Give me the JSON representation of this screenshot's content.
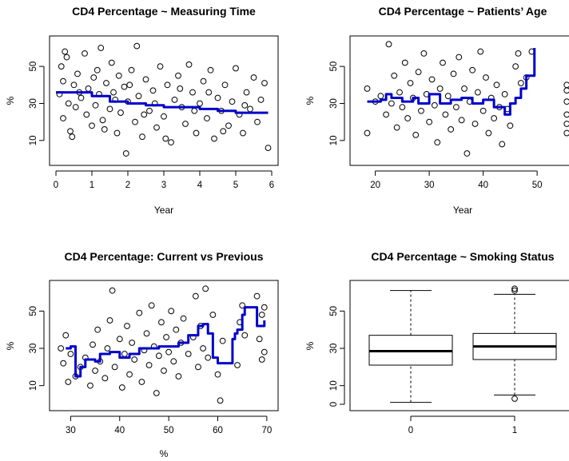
{
  "colors": {
    "smooth_line": "#0000cc",
    "points": "#000000",
    "axes": "#000000",
    "background": "#ffffff"
  },
  "chart_data": [
    {
      "type": "scatter",
      "title": "CD4 Percentage ~ Measuring Time",
      "xlabel": "Year",
      "ylabel": "%",
      "xlim": [
        0,
        6
      ],
      "ylim": [
        0,
        63
      ],
      "x_ticks": [
        "0",
        "1",
        "2",
        "3",
        "4",
        "5",
        "6"
      ],
      "y_ticks": [
        "10",
        "30",
        "50"
      ],
      "points": [
        [
          0.1,
          35
        ],
        [
          0.15,
          50
        ],
        [
          0.2,
          22
        ],
        [
          0.2,
          42
        ],
        [
          0.3,
          55
        ],
        [
          0.35,
          30
        ],
        [
          0.4,
          15
        ],
        [
          0.5,
          40
        ],
        [
          0.55,
          28
        ],
        [
          0.6,
          46
        ],
        [
          0.7,
          33
        ],
        [
          0.8,
          57
        ],
        [
          0.85,
          24
        ],
        [
          0.9,
          38
        ],
        [
          1.0,
          18
        ],
        [
          1.05,
          44
        ],
        [
          1.1,
          29
        ],
        [
          1.2,
          35
        ],
        [
          1.25,
          60
        ],
        [
          1.3,
          21
        ],
        [
          1.4,
          41
        ],
        [
          1.5,
          27
        ],
        [
          1.55,
          52
        ],
        [
          1.6,
          36
        ],
        [
          1.7,
          14
        ],
        [
          1.75,
          45
        ],
        [
          1.8,
          25
        ],
        [
          1.9,
          39
        ],
        [
          1.95,
          3
        ],
        [
          2.0,
          31
        ],
        [
          2.1,
          48
        ],
        [
          2.2,
          20
        ],
        [
          2.25,
          61
        ],
        [
          2.3,
          34
        ],
        [
          2.4,
          12
        ],
        [
          2.5,
          43
        ],
        [
          2.6,
          26
        ],
        [
          2.7,
          37
        ],
        [
          2.8,
          17
        ],
        [
          2.9,
          50
        ],
        [
          3.0,
          23
        ],
        [
          3.1,
          40
        ],
        [
          3.2,
          9
        ],
        [
          3.3,
          32
        ],
        [
          3.4,
          45
        ],
        [
          3.5,
          28
        ],
        [
          3.6,
          19
        ],
        [
          3.7,
          51
        ],
        [
          3.8,
          36
        ],
        [
          3.9,
          14
        ],
        [
          4.0,
          30
        ],
        [
          4.1,
          42
        ],
        [
          4.2,
          22
        ],
        [
          4.3,
          48
        ],
        [
          4.4,
          11
        ],
        [
          4.5,
          33
        ],
        [
          4.6,
          26
        ],
        [
          4.7,
          40
        ],
        [
          4.8,
          18
        ],
        [
          4.9,
          31
        ],
        [
          5.0,
          49
        ],
        [
          5.1,
          24
        ],
        [
          5.2,
          14
        ],
        [
          5.3,
          36
        ],
        [
          5.4,
          27
        ],
        [
          5.5,
          44
        ],
        [
          5.6,
          20
        ],
        [
          5.7,
          32
        ],
        [
          5.8,
          41
        ],
        [
          5.9,
          6
        ],
        [
          0.25,
          58
        ],
        [
          0.45,
          12
        ],
        [
          0.65,
          36
        ],
        [
          1.15,
          48
        ],
        [
          1.35,
          16
        ],
        [
          1.65,
          32
        ],
        [
          2.05,
          40
        ],
        [
          2.45,
          24
        ],
        [
          2.75,
          30
        ],
        [
          3.05,
          11
        ],
        [
          3.45,
          38
        ],
        [
          3.85,
          26
        ],
        [
          4.25,
          36
        ],
        [
          4.65,
          15
        ],
        [
          5.25,
          29
        ]
      ],
      "smooth": [
        [
          0.0,
          36
        ],
        [
          0.5,
          36
        ],
        [
          1.0,
          34
        ],
        [
          1.5,
          31
        ],
        [
          2.0,
          30
        ],
        [
          2.5,
          29
        ],
        [
          3.0,
          28
        ],
        [
          3.5,
          28
        ],
        [
          4.0,
          27
        ],
        [
          4.5,
          26
        ],
        [
          5.0,
          25
        ],
        [
          5.5,
          25
        ],
        [
          5.9,
          25
        ]
      ]
    },
    {
      "type": "scatter",
      "title": "CD4 Percentage ~ Patients’ Age",
      "xlabel": "Year",
      "ylabel": "%",
      "xlim": [
        16.5,
        56.5
      ],
      "ylim": [
        0,
        63
      ],
      "x_ticks": [
        "20",
        "30",
        "40",
        "50"
      ],
      "y_ticks": [
        "10",
        "30",
        "50"
      ],
      "points": [
        [
          18.5,
          38
        ],
        [
          18.5,
          14
        ],
        [
          20,
          31
        ],
        [
          21,
          34
        ],
        [
          22,
          24
        ],
        [
          22.5,
          62
        ],
        [
          23,
          30
        ],
        [
          23.5,
          45
        ],
        [
          24,
          17
        ],
        [
          24.5,
          36
        ],
        [
          25,
          28
        ],
        [
          25.5,
          52
        ],
        [
          26,
          22
        ],
        [
          26.5,
          41
        ],
        [
          27,
          33
        ],
        [
          27.5,
          13
        ],
        [
          28,
          47
        ],
        [
          28.5,
          26
        ],
        [
          29,
          57
        ],
        [
          29.5,
          35
        ],
        [
          30,
          20
        ],
        [
          30.5,
          43
        ],
        [
          31,
          29
        ],
        [
          31.5,
          9
        ],
        [
          32,
          38
        ],
        [
          32.5,
          52
        ],
        [
          33,
          24
        ],
        [
          33.5,
          34
        ],
        [
          34,
          16
        ],
        [
          34.5,
          46
        ],
        [
          35,
          28
        ],
        [
          35.5,
          55
        ],
        [
          36,
          21
        ],
        [
          36.5,
          38
        ],
        [
          37,
          3
        ],
        [
          37.5,
          31
        ],
        [
          38,
          48
        ],
        [
          38.5,
          19
        ],
        [
          39,
          36
        ],
        [
          39.5,
          58
        ],
        [
          40,
          26
        ],
        [
          40.5,
          44
        ],
        [
          41,
          14
        ],
        [
          41.5,
          33
        ],
        [
          42,
          22
        ],
        [
          42.5,
          40
        ],
        [
          43,
          28
        ],
        [
          43.5,
          8
        ],
        [
          44,
          35
        ],
        [
          44.5,
          27
        ],
        [
          45,
          18
        ],
        [
          46,
          50
        ],
        [
          46.5,
          57
        ],
        [
          47,
          41
        ],
        [
          48,
          44
        ],
        [
          49,
          58
        ],
        [
          55.5,
          24
        ],
        [
          55.5,
          31
        ],
        [
          55.5,
          19
        ],
        [
          55.5,
          37
        ],
        [
          55.5,
          14
        ],
        [
          55.5,
          40
        ]
      ],
      "smooth": [
        [
          18.5,
          31
        ],
        [
          21,
          32
        ],
        [
          22,
          35
        ],
        [
          23,
          33
        ],
        [
          25,
          31
        ],
        [
          27,
          33
        ],
        [
          28,
          30
        ],
        [
          30,
          35
        ],
        [
          32,
          30
        ],
        [
          34,
          32
        ],
        [
          36,
          33
        ],
        [
          38,
          30
        ],
        [
          40,
          32
        ],
        [
          42,
          28
        ],
        [
          44,
          24
        ],
        [
          45,
          30
        ],
        [
          46,
          33
        ],
        [
          47,
          38
        ],
        [
          48,
          45
        ],
        [
          49,
          45
        ],
        [
          49.5,
          60
        ]
      ]
    },
    {
      "type": "scatter",
      "title": "CD4 Percentage: Current vs Previous",
      "xlabel": "%",
      "ylabel": "%",
      "xlim": [
        27,
        71
      ],
      "ylim": [
        0,
        63
      ],
      "x_ticks": [
        "30",
        "40",
        "50",
        "60",
        "70"
      ],
      "y_ticks": [
        "10",
        "30",
        "50"
      ],
      "points": [
        [
          28,
          30
        ],
        [
          28.5,
          22
        ],
        [
          29,
          37
        ],
        [
          29.5,
          12
        ],
        [
          30,
          27
        ],
        [
          31,
          15
        ],
        [
          32,
          20
        ],
        [
          33,
          25
        ],
        [
          34,
          10
        ],
        [
          34.5,
          32
        ],
        [
          35,
          18
        ],
        [
          35.5,
          40
        ],
        [
          36,
          23
        ],
        [
          37,
          14
        ],
        [
          37.5,
          30
        ],
        [
          38,
          45
        ],
        [
          38.5,
          61
        ],
        [
          39,
          20
        ],
        [
          40,
          35
        ],
        [
          40.5,
          9
        ],
        [
          41,
          27
        ],
        [
          41.5,
          42
        ],
        [
          42,
          16
        ],
        [
          42.5,
          33
        ],
        [
          43,
          24
        ],
        [
          44,
          49
        ],
        [
          44.5,
          12
        ],
        [
          45,
          29
        ],
        [
          45.5,
          38
        ],
        [
          46,
          21
        ],
        [
          46.5,
          53
        ],
        [
          47,
          31
        ],
        [
          47.5,
          6
        ],
        [
          48,
          26
        ],
        [
          48.5,
          44
        ],
        [
          49,
          18
        ],
        [
          49.5,
          36
        ],
        [
          50,
          28
        ],
        [
          50.5,
          50
        ],
        [
          51,
          23
        ],
        [
          51.5,
          40
        ],
        [
          52,
          15
        ],
        [
          52.5,
          33
        ],
        [
          53,
          46
        ],
        [
          54,
          27
        ],
        [
          55,
          36
        ],
        [
          55.5,
          58
        ],
        [
          56,
          20
        ],
        [
          56.5,
          42
        ],
        [
          57,
          30
        ],
        [
          57.5,
          62
        ],
        [
          58,
          25
        ],
        [
          59,
          48
        ],
        [
          60,
          16
        ],
        [
          60.5,
          2
        ],
        [
          61,
          34
        ],
        [
          64,
          21
        ],
        [
          64.5,
          44
        ],
        [
          65,
          53
        ],
        [
          65.5,
          37
        ],
        [
          68,
          58
        ],
        [
          68.5,
          35
        ],
        [
          69,
          24
        ],
        [
          69,
          48
        ],
        [
          69.5,
          28
        ],
        [
          69.5,
          52
        ]
      ],
      "smooth": [
        [
          29,
          30
        ],
        [
          30,
          31
        ],
        [
          31,
          15
        ],
        [
          32,
          20
        ],
        [
          33,
          24
        ],
        [
          35,
          23
        ],
        [
          36,
          27
        ],
        [
          38,
          28
        ],
        [
          40,
          25
        ],
        [
          42,
          27
        ],
        [
          44,
          30
        ],
        [
          46,
          30
        ],
        [
          48,
          31
        ],
        [
          50,
          31
        ],
        [
          52,
          33
        ],
        [
          54,
          37
        ],
        [
          56,
          42
        ],
        [
          57,
          43
        ],
        [
          58,
          38
        ],
        [
          59,
          25
        ],
        [
          60,
          22
        ],
        [
          61,
          22
        ],
        [
          63,
          35
        ],
        [
          63.5,
          38
        ],
        [
          64,
          40
        ],
        [
          65,
          48
        ],
        [
          65.5,
          52
        ],
        [
          66,
          52
        ],
        [
          68,
          42
        ],
        [
          69,
          42
        ],
        [
          69.5,
          45
        ]
      ]
    },
    {
      "type": "box",
      "title": "CD4 Percentage ~ Smoking Status",
      "xlabel": "",
      "ylabel": "%",
      "ylim": [
        0,
        63
      ],
      "y_ticks": [
        "0",
        "10",
        "30",
        "50"
      ],
      "categories": [
        "0",
        "1"
      ],
      "boxes": [
        {
          "category": "0",
          "whisker_low": 1,
          "q1": 21,
          "median": 28.5,
          "q3": 37,
          "whisker_high": 61,
          "outliers": []
        },
        {
          "category": "1",
          "whisker_low": 5,
          "q1": 24,
          "median": 31,
          "q3": 38,
          "whisker_high": 59,
          "outliers": [
            3,
            61,
            62
          ]
        }
      ]
    }
  ]
}
